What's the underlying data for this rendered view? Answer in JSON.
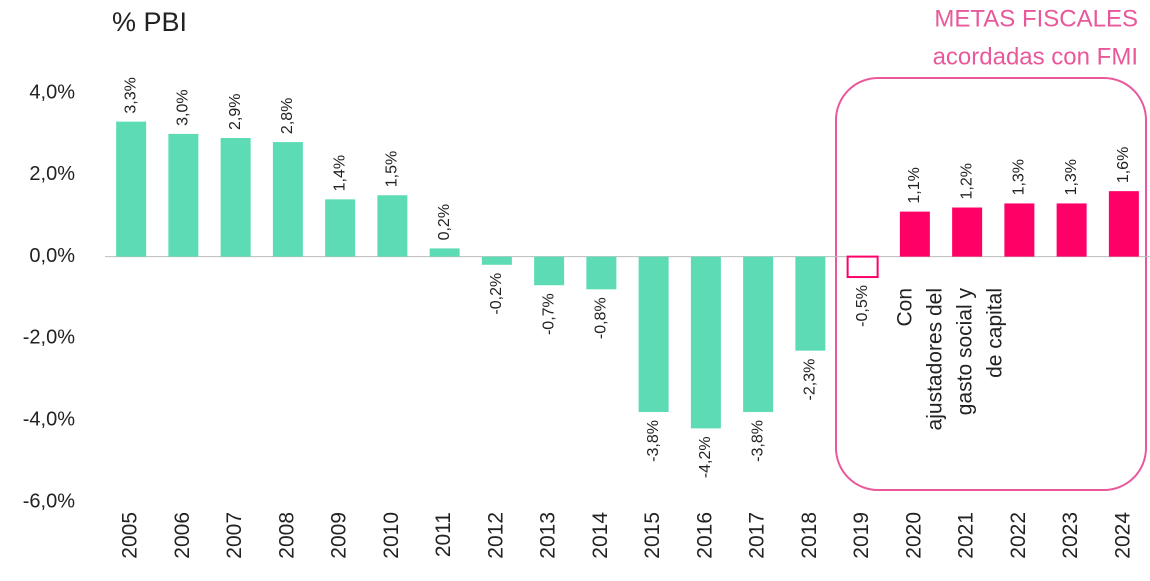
{
  "chart_data": {
    "type": "bar",
    "subtitle": "% PBI",
    "categories": [
      "2005",
      "2006",
      "2007",
      "2008",
      "2009",
      "2010",
      "2011",
      "2012",
      "2013",
      "2014",
      "2015",
      "2016",
      "2017",
      "2018",
      "2019",
      "2020",
      "2021",
      "2022",
      "2023",
      "2024"
    ],
    "values": [
      3.3,
      3.0,
      2.9,
      2.8,
      1.4,
      1.5,
      0.2,
      -0.2,
      -0.7,
      -0.8,
      -3.8,
      -4.2,
      -3.8,
      -2.3,
      -0.5,
      1.1,
      1.2,
      1.3,
      1.3,
      1.6
    ],
    "value_labels": [
      "3,3%",
      "3,0%",
      "2,9%",
      "2,8%",
      "1,4%",
      "1,5%",
      "0,2%",
      "-0,2%",
      "-0,7%",
      "-0,8%",
      "-3,8%",
      "-4,2%",
      "-3,8%",
      "-2,3%",
      "-0,5%",
      "1,1%",
      "1,2%",
      "1,3%",
      "1,3%",
      "1,6%"
    ],
    "colors": [
      "#5cdbb5",
      "#5cdbb5",
      "#5cdbb5",
      "#5cdbb5",
      "#5cdbb5",
      "#5cdbb5",
      "#5cdbb5",
      "#5cdbb5",
      "#5cdbb5",
      "#5cdbb5",
      "#5cdbb5",
      "#5cdbb5",
      "#5cdbb5",
      "#5cdbb5",
      "#ff0066",
      "#ff0066",
      "#ff0066",
      "#ff0066",
      "#ff0066",
      "#ff0066"
    ],
    "outlined_categories": [
      "2019"
    ],
    "ylim": [
      -6,
      4
    ],
    "yticks": [
      {
        "value": 4,
        "label": "4,0%"
      },
      {
        "value": 2,
        "label": "2,0%"
      },
      {
        "value": 0,
        "label": "0,0%"
      },
      {
        "value": -2,
        "label": "-2,0%"
      },
      {
        "value": -4,
        "label": "-4,0%"
      },
      {
        "value": -6,
        "label": "-6,0%"
      }
    ],
    "grid": false,
    "annotations": {
      "box_title": [
        "METAS FISCALES",
        "acordadas con FMI"
      ],
      "note": [
        "Con",
        "ajustadores del",
        "gasto social y",
        "de capital"
      ]
    }
  }
}
